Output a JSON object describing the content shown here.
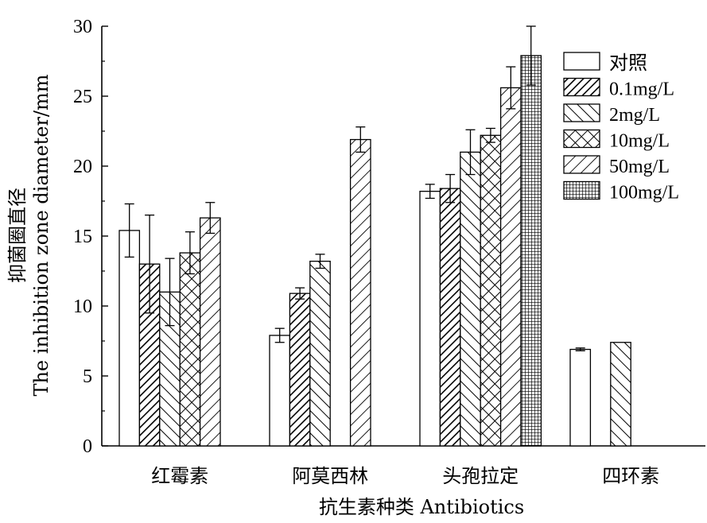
{
  "chart_data": {
    "type": "bar",
    "title": "",
    "categories": [
      "红霉素",
      "阿莫西林",
      "头孢拉定",
      "四环素"
    ],
    "xlabel": "抗生素种类 Antibiotics",
    "ylabel_cn": "抑菌圈直径",
    "ylabel_en": "The inhibition zone diameter/mm",
    "ylim": [
      0,
      30
    ],
    "yticks": [
      0,
      5,
      10,
      15,
      20,
      25,
      30
    ],
    "grid": false,
    "legend_position": "top-right",
    "series": [
      {
        "name": "对照",
        "pattern": "blank",
        "values": [
          15.4,
          7.9,
          18.2,
          6.9
        ],
        "errors": [
          1.9,
          0.5,
          0.5,
          0.1
        ]
      },
      {
        "name": "0.1mg/L",
        "pattern": "diag-dense",
        "values": [
          13.0,
          10.9,
          18.4,
          null
        ],
        "errors": [
          3.5,
          0.4,
          1.0,
          null
        ]
      },
      {
        "name": "2mg/L",
        "pattern": "diag-back",
        "values": [
          11.0,
          13.2,
          21.0,
          7.4
        ],
        "errors": [
          2.4,
          0.5,
          1.6,
          null
        ]
      },
      {
        "name": "10mg/L",
        "pattern": "cross",
        "values": [
          13.8,
          null,
          22.2,
          null
        ],
        "errors": [
          1.5,
          null,
          0.5,
          null
        ]
      },
      {
        "name": "50mg/L",
        "pattern": "diag-forward",
        "values": [
          16.3,
          21.9,
          25.6,
          null
        ],
        "errors": [
          1.1,
          0.9,
          1.5,
          null
        ]
      },
      {
        "name": "100mg/L",
        "pattern": "grid",
        "values": [
          null,
          null,
          27.9,
          null
        ],
        "errors": [
          null,
          null,
          2.1,
          null
        ]
      }
    ]
  }
}
